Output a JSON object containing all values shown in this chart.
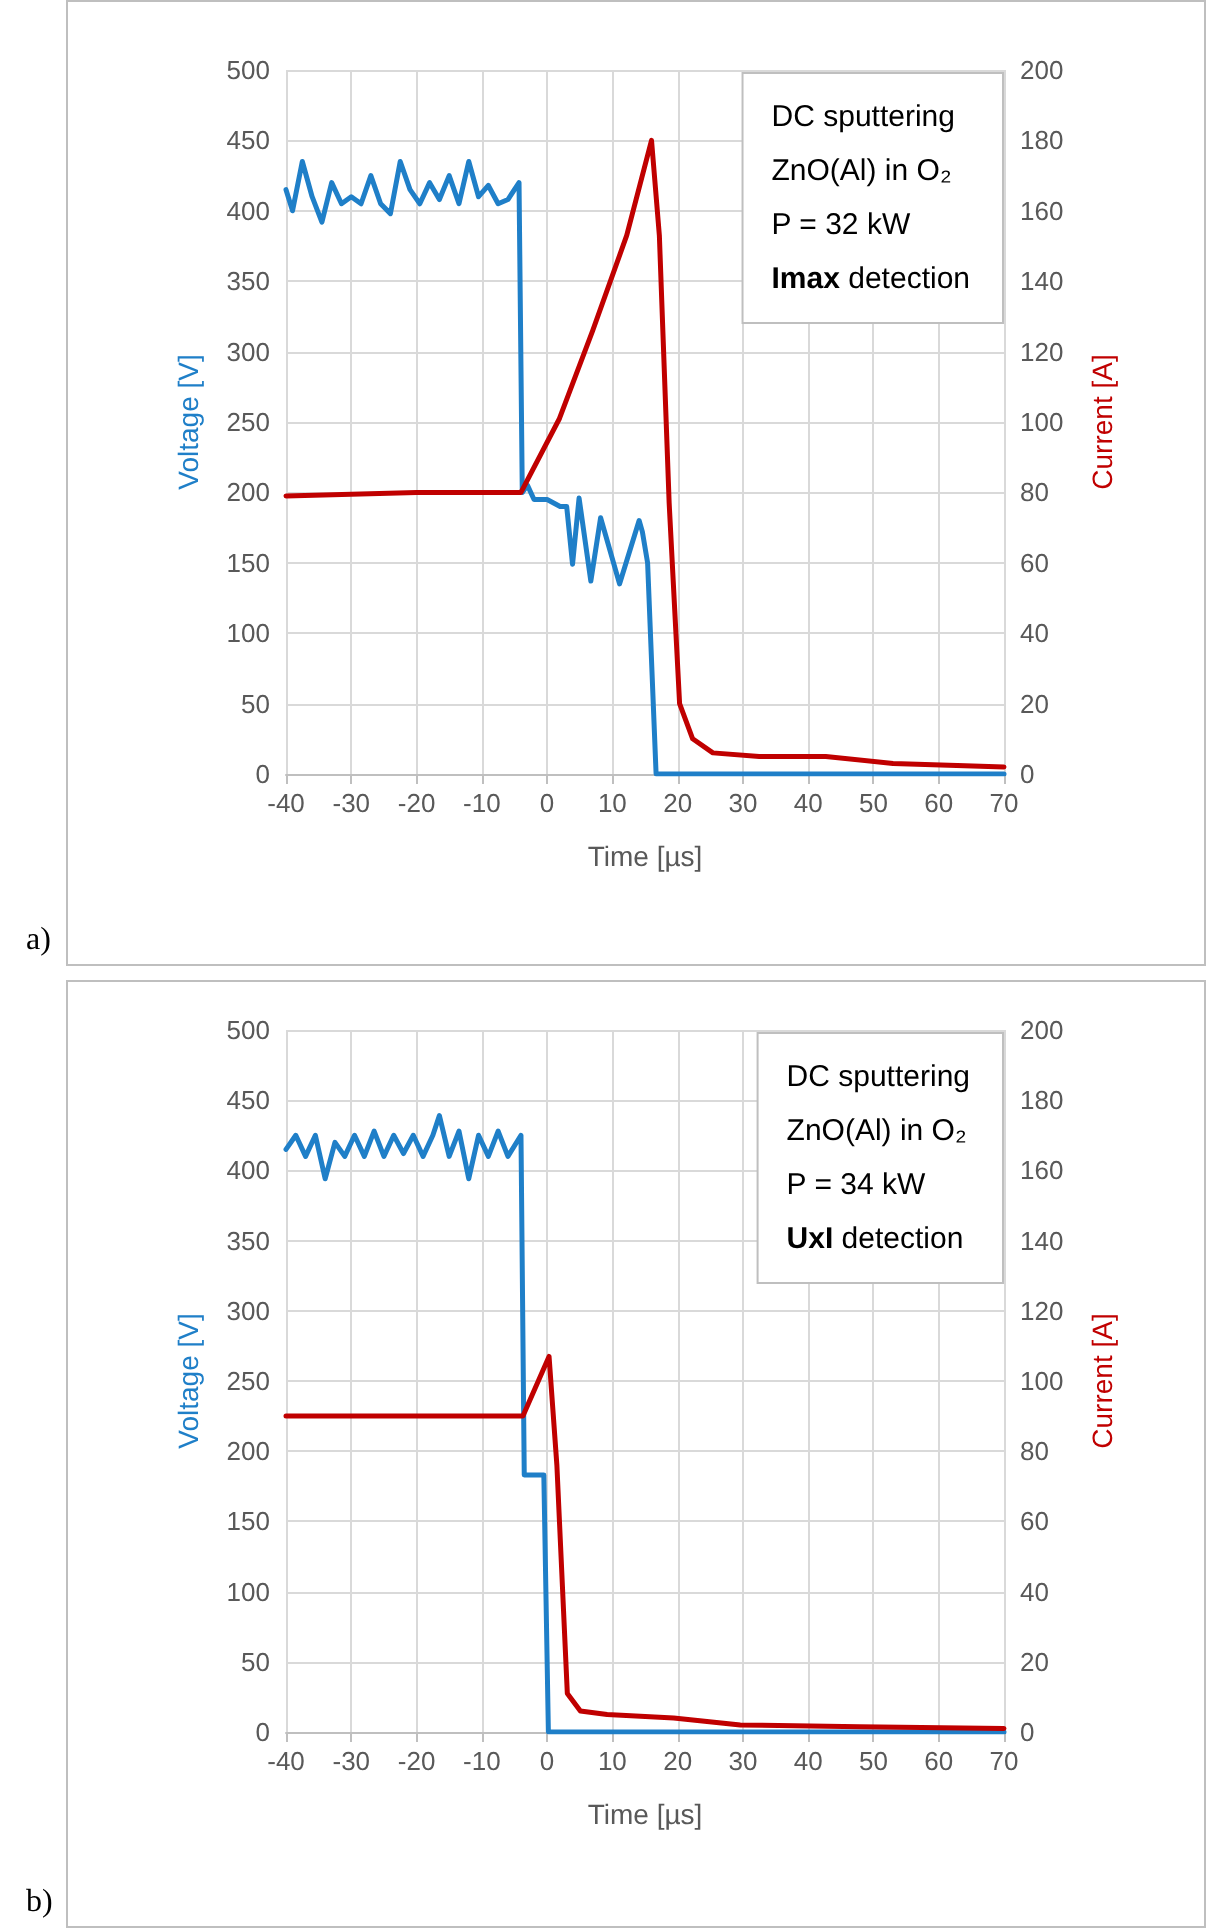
{
  "chart_data": [
    {
      "type": "line",
      "title": "a)",
      "xlabel": "Time [µs]",
      "ylabel": "Voltage [V]",
      "y2label": "Current [A]",
      "annotations": [
        "DC sputtering",
        "ZnO(Al) in O₂",
        "P = 32 kW",
        "Imax detection"
      ],
      "xlim": [
        -40,
        70
      ],
      "xticks": [
        -40,
        -30,
        -20,
        -10,
        0,
        10,
        20,
        30,
        40,
        50,
        60,
        70
      ],
      "ylim": [
        0,
        500
      ],
      "yticks": [
        0,
        50,
        100,
        150,
        200,
        250,
        300,
        350,
        400,
        450,
        500
      ],
      "y2lim": [
        0,
        200
      ],
      "y2ticks": [
        0,
        20,
        40,
        60,
        80,
        100,
        120,
        140,
        160,
        180,
        200
      ],
      "grid": true,
      "series": [
        {
          "color": "#1f7fc8",
          "x": [
            -40,
            -39,
            -37.5,
            -36,
            -34.5,
            -33,
            -31.5,
            -30,
            -28.5,
            -27,
            -25.5,
            -24,
            -22.5,
            -21,
            -19.5,
            -18,
            -16.5,
            -15,
            -13.5,
            -12,
            -10.5,
            -9,
            -7.5,
            -6,
            -4.3,
            -3.8,
            -3,
            -2,
            0,
            2,
            3,
            3.9,
            4.9,
            6.7,
            8.2,
            11.1,
            14.1,
            14.6,
            15.4,
            16.7,
            30,
            50,
            70
          ],
          "values": [
            415,
            400,
            435,
            410,
            392,
            420,
            405,
            410,
            405,
            425,
            405,
            398,
            435,
            415,
            405,
            420,
            408,
            425,
            405,
            435,
            410,
            418,
            405,
            408,
            420,
            200,
            205,
            195,
            195,
            190,
            190,
            149,
            196,
            137,
            182,
            135,
            180,
            172,
            150,
            0,
            0,
            0,
            0
          ]
        },
        {
          "color": "#c00000",
          "axis": "y2",
          "x": [
            -40,
            -20,
            -5,
            -4,
            1.9,
            7,
            12.2,
            16,
            17.2,
            18.7,
            20.3,
            22.3,
            25.4,
            32.5,
            42.7,
            53,
            70
          ],
          "values": [
            79,
            80,
            80,
            80,
            101,
            126,
            153,
            180,
            153,
            77,
            20,
            10,
            6,
            5,
            5,
            3,
            2
          ]
        }
      ]
    },
    {
      "type": "line",
      "title": "b)",
      "xlabel": "Time [µs]",
      "ylabel": "Voltage [V]",
      "y2label": "Current [A]",
      "annotations": [
        "DC sputtering",
        "ZnO(Al) in O₂",
        "P = 34 kW",
        "UxI detection"
      ],
      "xlim": [
        -40,
        70
      ],
      "xticks": [
        -40,
        -30,
        -20,
        -10,
        0,
        10,
        20,
        30,
        40,
        50,
        60,
        70
      ],
      "ylim": [
        0,
        500
      ],
      "yticks": [
        0,
        50,
        100,
        150,
        200,
        250,
        300,
        350,
        400,
        450,
        500
      ],
      "y2lim": [
        0,
        200
      ],
      "y2ticks": [
        0,
        20,
        40,
        60,
        80,
        100,
        120,
        140,
        160,
        180,
        200
      ],
      "grid": true,
      "series": [
        {
          "color": "#1f7fc8",
          "x": [
            -40,
            -38.5,
            -37,
            -35.5,
            -34,
            -32.5,
            -31,
            -29.5,
            -28,
            -26.5,
            -25,
            -23.5,
            -22,
            -20.5,
            -19,
            -17.5,
            -16.5,
            -15,
            -13.5,
            -12,
            -10.5,
            -9,
            -7.5,
            -6,
            -4,
            -3.5,
            -2.8,
            -0.5,
            0.2,
            70
          ],
          "values": [
            415,
            425,
            410,
            425,
            394,
            420,
            410,
            425,
            410,
            428,
            410,
            425,
            412,
            425,
            410,
            425,
            439,
            410,
            428,
            394,
            425,
            410,
            428,
            410,
            425,
            183,
            183,
            183,
            0,
            0
          ]
        },
        {
          "color": "#c00000",
          "axis": "y2",
          "x": [
            -40,
            -20,
            -3.7,
            0.3,
            1.5,
            3.1,
            5.1,
            9.2,
            19.4,
            29.6,
            47.9,
            70
          ],
          "values": [
            90,
            90,
            90,
            107,
            76,
            11,
            6,
            5,
            4,
            2,
            1.5,
            1
          ]
        }
      ]
    }
  ]
}
